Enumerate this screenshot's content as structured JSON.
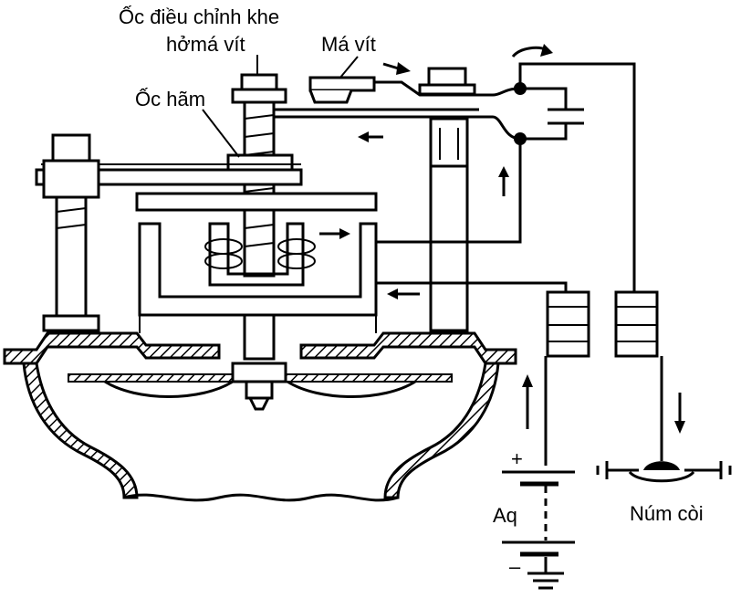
{
  "labels": {
    "adjust_screw": "Ốc điều chỉnh khe",
    "adjust_screw_2": "hởmá vít",
    "contact_points": "Má vít",
    "lock_nut": "Ốc hãm",
    "battery": "Aq",
    "battery_plus": "+",
    "battery_minus": "–",
    "horn_button": "Núm còi"
  },
  "colors": {
    "line": "#000000",
    "background": "#ffffff"
  }
}
